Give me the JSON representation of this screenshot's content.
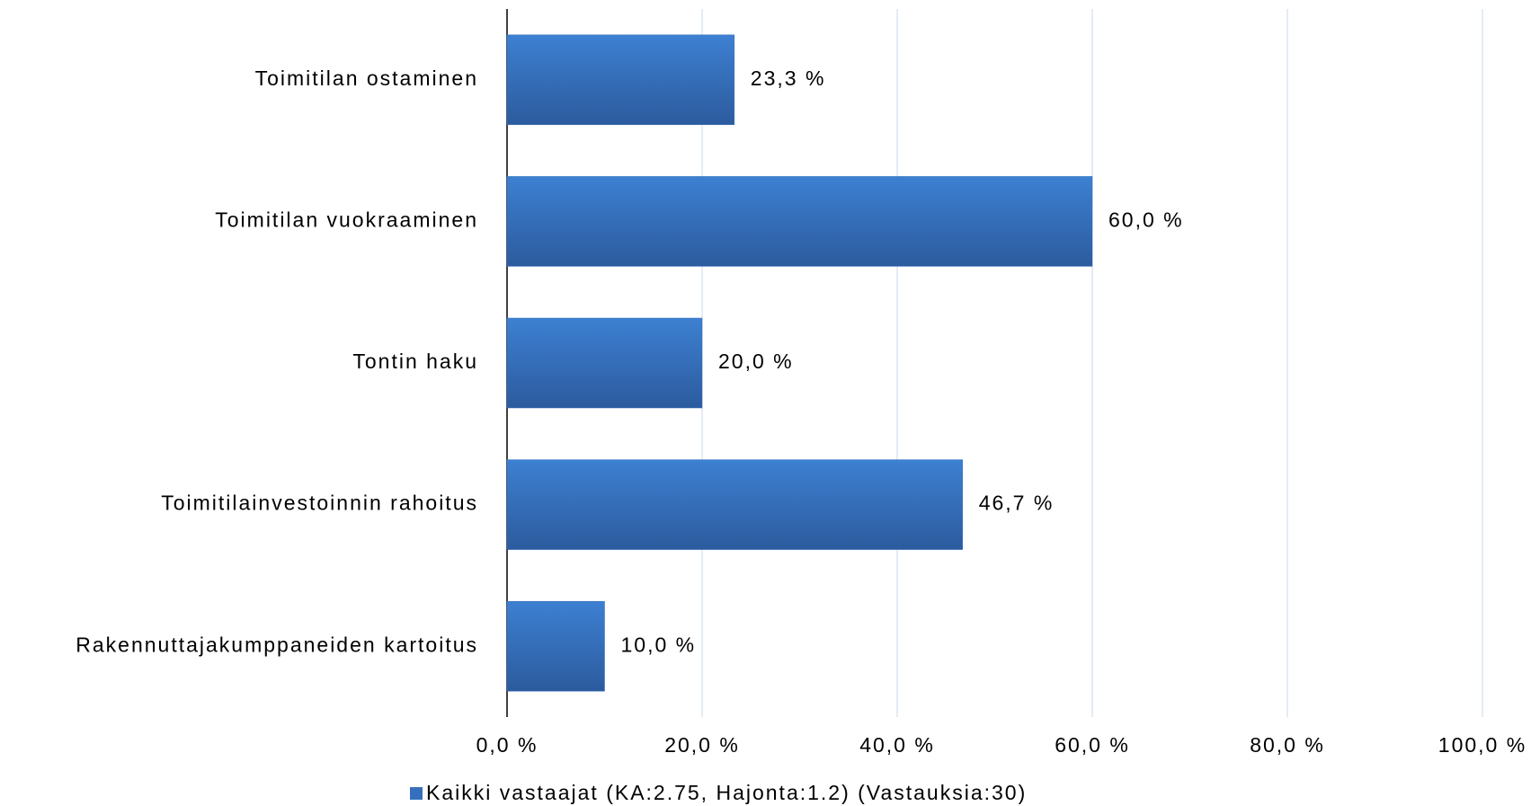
{
  "chart_data": {
    "type": "hbar",
    "categories": [
      "Toimitilan ostaminen",
      "Toimitilan vuokraaminen",
      "Tontin haku",
      "Toimitilainvestoinnin rahoitus",
      "Rakennuttajakumppaneiden kartoitus"
    ],
    "series": [
      {
        "name": "Kaikki vastaajat (KA:2.75, Hajonta:1.2) (Vastauksia:30)",
        "color": "#3670bd",
        "values": [
          23.3,
          60.0,
          20.0,
          46.7,
          10.0
        ],
        "value_labels": [
          "23,3 %",
          "60,0 %",
          "20,0 %",
          "46,7 %",
          "10,0 %"
        ]
      }
    ],
    "xlim": [
      0,
      100
    ],
    "xticks": [
      {
        "value": 0,
        "label": "0,0 %"
      },
      {
        "value": 20,
        "label": "20,0 %"
      },
      {
        "value": 40,
        "label": "40,0 %"
      },
      {
        "value": 60,
        "label": "60,0 %"
      },
      {
        "value": 80,
        "label": "80,0 %"
      },
      {
        "value": 100,
        "label": "100,0 %"
      }
    ],
    "grid": true,
    "legend": "bottom"
  }
}
